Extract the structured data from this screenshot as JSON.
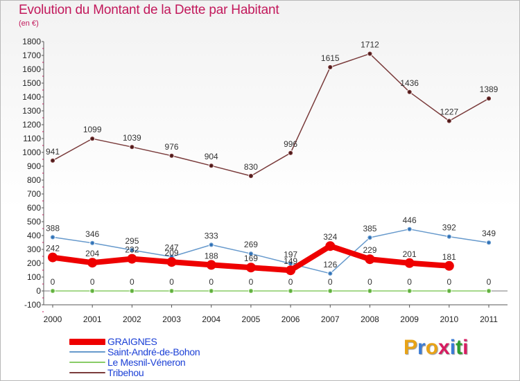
{
  "title": "Evolution du Montant de la Dette par Habitant",
  "subtitle": "(en €)",
  "logo": {
    "text": "Proxiti",
    "colors": [
      "#e8a317",
      "#3a7bd5",
      "#e8a317",
      "#d81b60",
      "#3a7bd5",
      "#2e9e2e",
      "#d81b60"
    ]
  },
  "chart_data": {
    "type": "line",
    "x": [
      "2000",
      "2001",
      "2002",
      "2003",
      "2004",
      "2005",
      "2006",
      "2007",
      "2008",
      "2009",
      "2010",
      "2011"
    ],
    "ylim": [
      -100,
      1800
    ],
    "yticks": [
      "-100",
      "0",
      "100",
      "200",
      "300",
      "400",
      "500",
      "600",
      "700",
      "800",
      "900",
      "1000",
      "1100",
      "1200",
      "1300",
      "1400",
      "1500",
      "1600",
      "1700",
      "1800"
    ],
    "grid": false,
    "legend_position": "bottom-left",
    "series": [
      {
        "name": "GRAIGNES",
        "color": "#ee0000",
        "values": [
          242,
          204,
          232,
          209,
          188,
          169,
          149,
          324,
          229,
          201,
          181,
          null
        ],
        "labels": [
          "242",
          "204",
          "232",
          "209",
          "188",
          "169",
          "149",
          "324",
          "229",
          "201",
          "181",
          ""
        ]
      },
      {
        "name": "Saint-André-de-Bohon",
        "color": "#6699cc",
        "values": [
          388,
          346,
          295,
          247,
          333,
          269,
          197,
          126,
          385,
          446,
          392,
          349
        ],
        "labels": [
          "388",
          "346",
          "295",
          "247",
          "333",
          "269",
          "197",
          "126",
          "385",
          "446",
          "392",
          "349"
        ]
      },
      {
        "name": "Le Mesnil-Véneron",
        "color": "#88cc66",
        "values": [
          0,
          0,
          0,
          0,
          0,
          0,
          0,
          0,
          0,
          0,
          0,
          0
        ],
        "labels": [
          "0",
          "0",
          "0",
          "0",
          "0",
          "0",
          "0",
          "0",
          "0",
          "0",
          "0",
          "0"
        ]
      },
      {
        "name": "Tribehou",
        "color": "#7a3b3b",
        "values": [
          941,
          1099,
          1039,
          976,
          904,
          830,
          996,
          1615,
          1712,
          1436,
          1227,
          1389
        ],
        "labels": [
          "941",
          "1099",
          "1039",
          "976",
          "904",
          "830",
          "996",
          "1615",
          "1712",
          "1436",
          "1227",
          "1389"
        ]
      }
    ]
  }
}
